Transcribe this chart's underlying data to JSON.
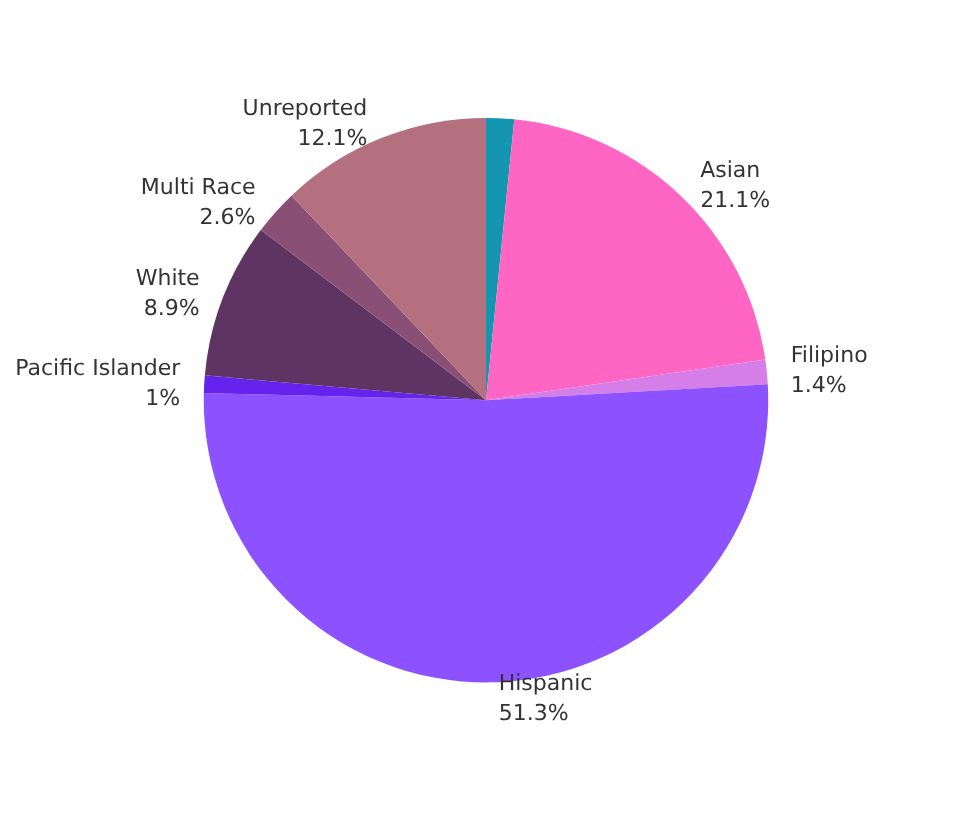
{
  "chart_data": {
    "type": "pie",
    "categories": [
      null,
      "Asian",
      "Filipino",
      "Hispanic",
      "Pacific Islander",
      "White",
      "Multi Race",
      "Unreported"
    ],
    "values": [
      1.6,
      21.1,
      1.4,
      51.3,
      1,
      8.9,
      2.6,
      12.1
    ],
    "value_labels": [
      null,
      "21.1%",
      "1.4%",
      "51.3%",
      "1%",
      "8.9%",
      "2.6%",
      "12.1%"
    ],
    "colors": [
      "#1496b0",
      "#ff66c4",
      "#d57ee8",
      "#8c52ff",
      "#6424ee",
      "#5e3463",
      "#8a4f74",
      "#b5707f"
    ]
  }
}
